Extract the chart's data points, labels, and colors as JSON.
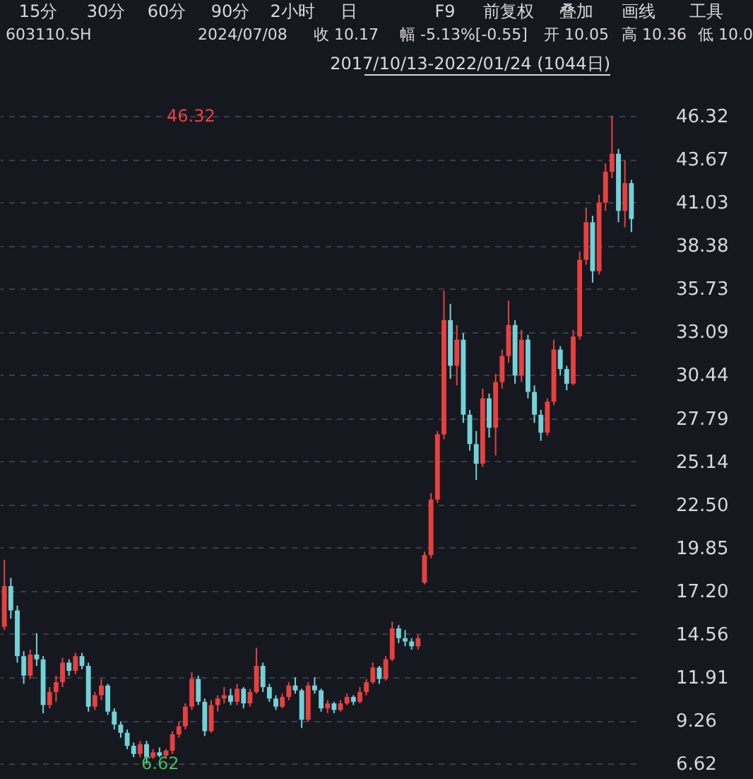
{
  "chart_data": {
    "type": "candlestick",
    "title": "603110.SH",
    "subtitle": "2017/10/13-2022/01/24 (1044日)",
    "annotations": [
      "15分",
      "30分",
      "60分",
      "90分",
      "2小时",
      "日",
      "F9",
      "前复权",
      "叠加",
      "画线",
      "工具",
      "2024/07/08",
      "收 10.17",
      "幅 -5.13%[-0.55]",
      "开 10.05",
      "高 10.36",
      "低 10.0",
      "46.32",
      "6.62"
    ],
    "categories": [
      null,
      null,
      null,
      null,
      null,
      null,
      null,
      null,
      null,
      null,
      null,
      null,
      null,
      null,
      null,
      null,
      null,
      null,
      null,
      null,
      null,
      null,
      null,
      null,
      null,
      null,
      null,
      null,
      null,
      null,
      null,
      null,
      null,
      null,
      null,
      null,
      null,
      null,
      null,
      null,
      null,
      null,
      null,
      null,
      null,
      null,
      null,
      null,
      null,
      null,
      null,
      null,
      null,
      null,
      null,
      null,
      null,
      null,
      null,
      null,
      null,
      null,
      null,
      null,
      null,
      null,
      null,
      null,
      null,
      null,
      null,
      null,
      null,
      null,
      null,
      null,
      null,
      null,
      null,
      null,
      null,
      null,
      null,
      null,
      null,
      null,
      null,
      null,
      null,
      null,
      null,
      null,
      null,
      null,
      null,
      null,
      null,
      null
    ],
    "ohlc": [
      [
        15.0,
        19.1,
        14.8,
        17.5
      ],
      [
        17.5,
        18.0,
        15.5,
        16.0
      ],
      [
        16.0,
        16.3,
        12.8,
        13.2
      ],
      [
        13.2,
        13.5,
        11.5,
        12.0
      ],
      [
        12.0,
        13.6,
        11.8,
        13.3
      ],
      [
        13.3,
        14.6,
        12.6,
        13.0
      ],
      [
        13.0,
        13.2,
        9.7,
        10.2
      ],
      [
        10.2,
        11.3,
        10.0,
        11.0
      ],
      [
        11.0,
        12.0,
        10.4,
        11.6
      ],
      [
        11.6,
        13.1,
        11.3,
        12.8
      ],
      [
        12.8,
        13.0,
        12.0,
        12.3
      ],
      [
        12.3,
        13.4,
        12.1,
        13.2
      ],
      [
        13.2,
        13.4,
        12.4,
        12.6
      ],
      [
        12.6,
        12.8,
        9.8,
        10.1
      ],
      [
        10.1,
        11.0,
        9.9,
        10.8
      ],
      [
        10.8,
        11.8,
        10.5,
        11.4
      ],
      [
        11.4,
        11.5,
        9.6,
        9.8
      ],
      [
        9.8,
        10.0,
        8.7,
        9.0
      ],
      [
        9.0,
        9.2,
        8.2,
        8.5
      ],
      [
        8.5,
        8.7,
        7.5,
        7.7
      ],
      [
        7.7,
        7.9,
        7.0,
        7.2
      ],
      [
        7.2,
        8.0,
        7.0,
        7.8
      ],
      [
        7.8,
        8.0,
        6.62,
        7.0
      ],
      [
        7.0,
        7.5,
        6.9,
        7.3
      ],
      [
        7.3,
        7.6,
        7.0,
        7.1
      ],
      [
        7.1,
        7.5,
        6.9,
        7.4
      ],
      [
        7.4,
        8.6,
        7.2,
        8.4
      ],
      [
        8.4,
        9.2,
        8.2,
        8.9
      ],
      [
        8.9,
        10.3,
        8.7,
        10.1
      ],
      [
        10.1,
        12.2,
        9.9,
        11.8
      ],
      [
        11.8,
        12.0,
        10.2,
        10.4
      ],
      [
        10.4,
        10.6,
        8.3,
        8.6
      ],
      [
        8.6,
        10.5,
        8.5,
        10.2
      ],
      [
        10.2,
        10.8,
        9.8,
        10.6
      ],
      [
        10.6,
        11.3,
        10.3,
        10.8
      ],
      [
        10.8,
        11.2,
        10.2,
        10.4
      ],
      [
        10.4,
        11.5,
        10.2,
        11.2
      ],
      [
        11.2,
        11.3,
        10.0,
        10.3
      ],
      [
        10.3,
        11.2,
        10.1,
        11.0
      ],
      [
        11.0,
        13.7,
        10.9,
        12.6
      ],
      [
        12.6,
        12.8,
        11.0,
        11.3
      ],
      [
        11.3,
        11.5,
        10.4,
        10.6
      ],
      [
        10.6,
        10.8,
        9.9,
        10.1
      ],
      [
        10.1,
        10.9,
        10.0,
        10.7
      ],
      [
        10.7,
        11.6,
        10.5,
        11.4
      ],
      [
        11.4,
        11.9,
        10.9,
        11.1
      ],
      [
        11.1,
        11.2,
        8.8,
        9.3
      ],
      [
        9.3,
        11.6,
        9.2,
        11.4
      ],
      [
        11.4,
        11.9,
        10.9,
        11.1
      ],
      [
        11.1,
        11.2,
        9.8,
        10.0
      ],
      [
        10.0,
        10.5,
        9.7,
        10.3
      ],
      [
        10.3,
        10.4,
        9.7,
        9.9
      ],
      [
        9.9,
        10.5,
        9.8,
        10.3
      ],
      [
        10.3,
        10.9,
        10.2,
        10.7
      ],
      [
        10.7,
        10.8,
        10.2,
        10.4
      ],
      [
        10.4,
        11.3,
        10.3,
        11.0
      ],
      [
        11.0,
        11.8,
        10.8,
        11.6
      ],
      [
        11.6,
        12.8,
        11.5,
        12.5
      ],
      [
        12.5,
        12.6,
        11.5,
        11.8
      ],
      [
        11.8,
        13.2,
        11.7,
        13.0
      ],
      [
        13.0,
        15.3,
        12.9,
        14.9
      ],
      [
        14.9,
        15.1,
        14.0,
        14.3
      ],
      [
        14.3,
        14.8,
        13.8,
        14.1
      ],
      [
        14.1,
        14.3,
        13.6,
        13.8
      ],
      [
        13.8,
        14.5,
        13.6,
        14.3
      ],
      [
        17.7,
        19.6,
        17.6,
        19.4
      ],
      [
        19.4,
        23.2,
        19.2,
        22.8
      ],
      [
        22.8,
        27.0,
        22.6,
        26.8
      ],
      [
        26.8,
        35.6,
        26.5,
        33.8
      ],
      [
        33.8,
        34.8,
        30.2,
        31.0
      ],
      [
        31.0,
        33.5,
        29.8,
        32.6
      ],
      [
        32.6,
        33.0,
        27.5,
        28.0
      ],
      [
        28.0,
        28.3,
        25.8,
        26.2
      ],
      [
        26.2,
        27.0,
        24.0,
        25.0
      ],
      [
        25.0,
        29.6,
        24.8,
        29.0
      ],
      [
        29.0,
        29.3,
        26.6,
        27.2
      ],
      [
        27.2,
        30.5,
        25.5,
        30.0
      ],
      [
        30.0,
        32.0,
        29.6,
        31.6
      ],
      [
        31.6,
        35.0,
        31.2,
        33.5
      ],
      [
        33.5,
        33.8,
        29.9,
        30.4
      ],
      [
        30.4,
        33.2,
        30.0,
        32.6
      ],
      [
        32.6,
        32.9,
        29.0,
        29.4
      ],
      [
        29.4,
        29.8,
        27.5,
        28.0
      ],
      [
        28.0,
        28.3,
        26.4,
        26.9
      ],
      [
        26.9,
        29.0,
        26.7,
        28.8
      ],
      [
        28.8,
        32.6,
        28.6,
        32.0
      ],
      [
        32.0,
        32.2,
        30.4,
        30.8
      ],
      [
        30.8,
        31.0,
        29.5,
        29.9
      ],
      [
        29.9,
        33.2,
        29.8,
        32.8
      ],
      [
        32.8,
        38.0,
        32.6,
        37.5
      ],
      [
        37.5,
        40.7,
        37.2,
        39.8
      ],
      [
        39.8,
        40.2,
        36.1,
        36.8
      ],
      [
        36.8,
        41.5,
        36.6,
        41.0
      ],
      [
        41.0,
        43.4,
        40.5,
        42.9
      ],
      [
        42.9,
        46.32,
        42.5,
        44.0
      ],
      [
        44.0,
        44.3,
        39.8,
        40.5
      ],
      [
        40.5,
        43.6,
        39.5,
        42.2
      ],
      [
        42.2,
        42.4,
        39.2,
        40.0
      ]
    ],
    "colors": [
      "#e8403f",
      "#6fd3d8",
      "#6fd3d8",
      "#6fd3d8",
      "#e8403f",
      "#6fd3d8",
      "#6fd3d8",
      "#e8403f",
      "#e8403f",
      "#e8403f",
      "#6fd3d8",
      "#e8403f",
      "#6fd3d8",
      "#6fd3d8",
      "#e8403f",
      "#e8403f",
      "#6fd3d8",
      "#6fd3d8",
      "#6fd3d8",
      "#6fd3d8",
      "#6fd3d8",
      "#e8403f",
      "#6fd3d8",
      "#e8403f",
      "#6fd3d8",
      "#e8403f",
      "#e8403f",
      "#e8403f",
      "#e8403f",
      "#e8403f",
      "#6fd3d8",
      "#6fd3d8",
      "#e8403f",
      "#e8403f",
      "#e8403f",
      "#6fd3d8",
      "#e8403f",
      "#6fd3d8",
      "#e8403f",
      "#e8403f",
      "#6fd3d8",
      "#6fd3d8",
      "#6fd3d8",
      "#e8403f",
      "#e8403f",
      "#6fd3d8",
      "#6fd3d8",
      "#e8403f",
      "#6fd3d8",
      "#6fd3d8",
      "#e8403f",
      "#6fd3d8",
      "#e8403f",
      "#e8403f",
      "#6fd3d8",
      "#e8403f",
      "#e8403f",
      "#e8403f",
      "#6fd3d8",
      "#e8403f",
      "#e8403f",
      "#6fd3d8",
      "#6fd3d8",
      "#6fd3d8",
      "#e8403f",
      "#e8403f",
      "#e8403f",
      "#e8403f",
      "#e8403f",
      "#6fd3d8",
      "#e8403f",
      "#6fd3d8",
      "#6fd3d8",
      "#6fd3d8",
      "#e8403f",
      "#6fd3d8",
      "#e8403f",
      "#e8403f",
      "#e8403f",
      "#6fd3d8",
      "#e8403f",
      "#6fd3d8",
      "#6fd3d8",
      "#6fd3d8",
      "#e8403f",
      "#e8403f",
      "#6fd3d8",
      "#6fd3d8",
      "#e8403f",
      "#e8403f",
      "#e8403f",
      "#6fd3d8",
      "#e8403f",
      "#e8403f",
      "#e8403f",
      "#6fd3d8",
      "#e8403f",
      "#6fd3d8"
    ],
    "ylim": [
      6.62,
      46.32
    ],
    "yticks": [
      6.62,
      9.26,
      11.91,
      14.56,
      {
        "value": 17.2,
        "label": "17.20"
      },
      19.85,
      {
        "value": 22.5,
        "label": "22.50"
      },
      25.14,
      27.79,
      30.44,
      33.09,
      35.73,
      38.38,
      41.03,
      43.67,
      46.32
    ],
    "grid": "y",
    "tick_labels": "y"
  }
}
